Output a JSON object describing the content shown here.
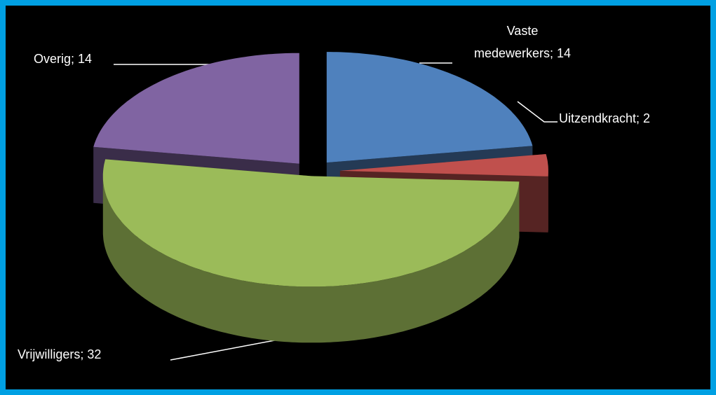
{
  "chart_data": {
    "type": "pie",
    "values": [
      14,
      2,
      32,
      14
    ],
    "value_labels": [
      "Vaste medewerkers; 14",
      "Uitzendkracht; 2",
      "Vrijwilligers; 32",
      "Overig; 14"
    ],
    "colors": [
      "#4f81bd",
      "#c0504d",
      "#9bbb59",
      "#8064a2"
    ]
  }
}
